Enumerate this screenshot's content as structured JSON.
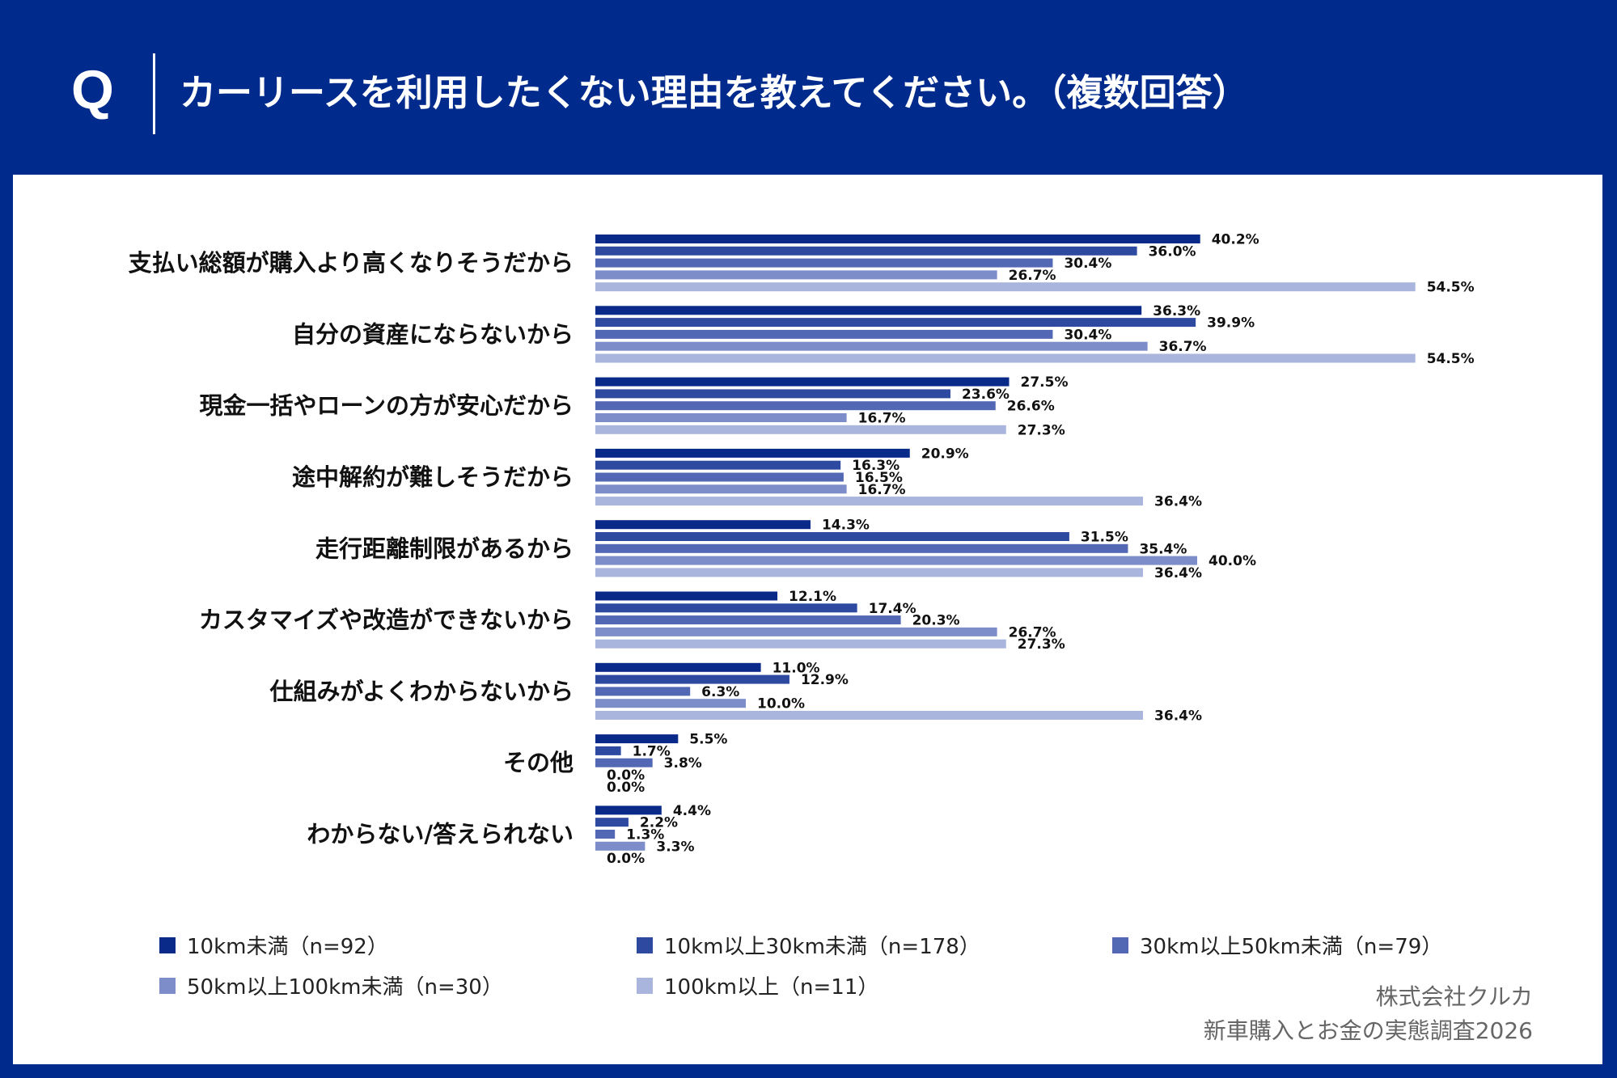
{
  "header": {
    "q_mark": "Q",
    "question": "カーリースを利用したくない理由を教えてください。（複数回答）"
  },
  "chart_data": {
    "type": "bar",
    "orientation": "horizontal",
    "categories": [
      "支払い総額が購入より高くなりそうだから",
      "自分の資産にならないから",
      "現金一括やローンの方が安心だから",
      "途中解約が難しそうだから",
      "走行距離制限があるから",
      "カスタマイズや改造ができないから",
      "仕組みがよくわからないから",
      "その他",
      "わからない/答えられない"
    ],
    "series": [
      {
        "name": "10km未満（n=92）",
        "color": "#0a2a8a",
        "values": [
          40.2,
          36.3,
          27.5,
          20.9,
          14.3,
          12.1,
          11.0,
          5.5,
          4.4
        ]
      },
      {
        "name": "10km以上30km未満（n=178）",
        "color": "#2d49a0",
        "values": [
          36.0,
          39.9,
          23.6,
          16.3,
          31.5,
          17.4,
          12.9,
          1.7,
          2.2
        ]
      },
      {
        "name": "30km以上50km未満（n=79）",
        "color": "#5368b5",
        "values": [
          30.4,
          30.4,
          26.6,
          16.5,
          35.4,
          20.3,
          6.3,
          3.8,
          1.3
        ]
      },
      {
        "name": "50km以上100km未満（n=30）",
        "color": "#7d8dc9",
        "values": [
          26.7,
          36.7,
          16.7,
          16.7,
          40.0,
          26.7,
          10.0,
          0.0,
          3.3
        ]
      },
      {
        "name": "100km以上（n=11）",
        "color": "#aab5de",
        "values": [
          54.5,
          54.5,
          27.3,
          36.4,
          36.4,
          27.3,
          36.4,
          0.0,
          0.0
        ]
      }
    ],
    "value_suffix": "%",
    "xlim": [
      0,
      60
    ],
    "grid": false,
    "legend_position": "bottom"
  },
  "source": {
    "line1": "株式会社クルカ",
    "line2": "新車購入とお金の実態調査2026"
  }
}
